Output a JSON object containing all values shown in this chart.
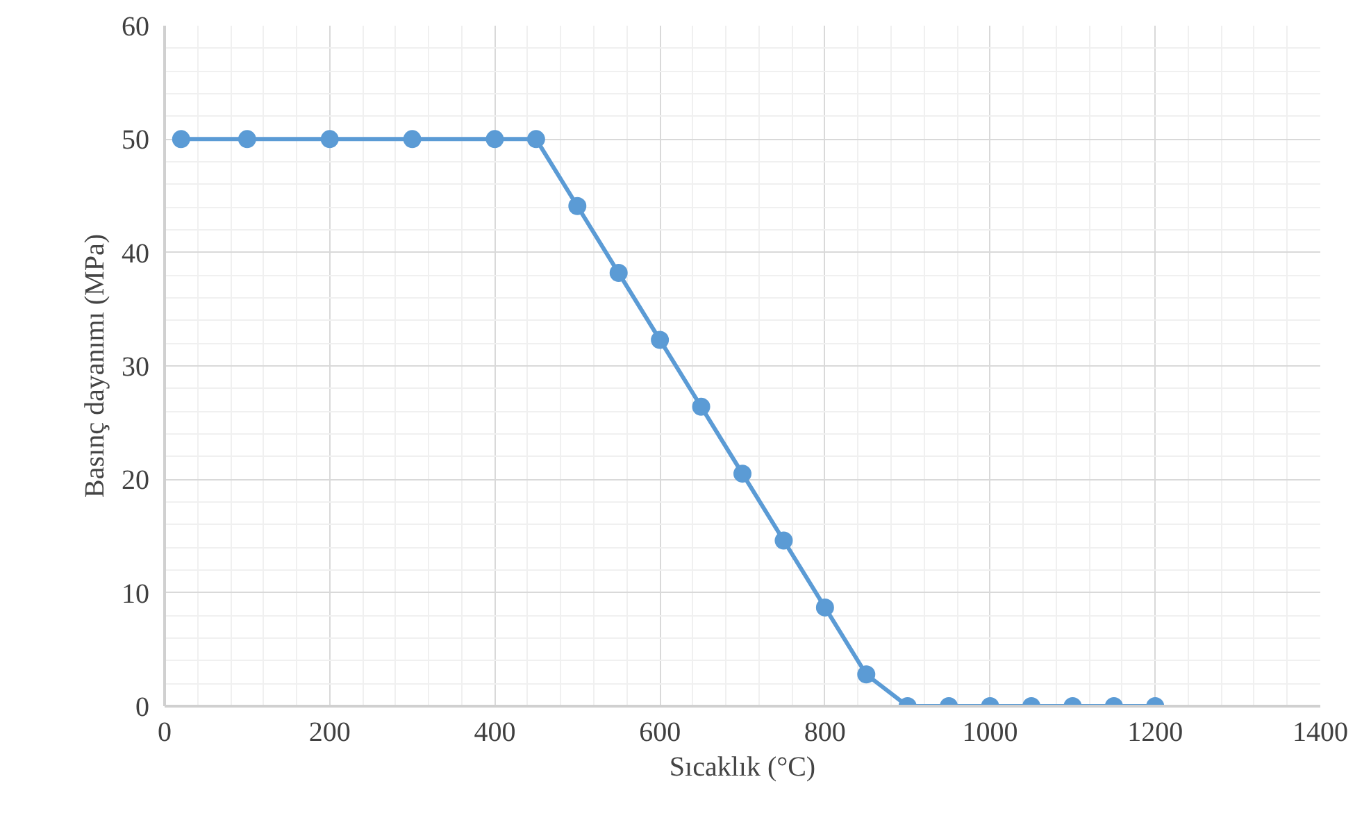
{
  "chart_data": {
    "type": "line",
    "xlabel": "Sıcaklık (°C)",
    "ylabel": "Basınç dayanımı (MPa)",
    "x": [
      20,
      100,
      200,
      300,
      400,
      450,
      500,
      550,
      600,
      650,
      700,
      750,
      800,
      850,
      900,
      950,
      1000,
      1050,
      1100,
      1150,
      1200
    ],
    "series": [
      {
        "color": "#5b9bd5",
        "values": [
          50,
          50,
          50,
          50,
          50,
          50,
          44.1,
          38.2,
          32.3,
          26.4,
          20.5,
          14.6,
          8.7,
          2.8,
          0,
          0,
          0,
          0,
          0,
          0,
          0
        ]
      }
    ],
    "xlim": [
      0,
      1400
    ],
    "xticks": [
      0,
      200,
      400,
      600,
      800,
      1000,
      1200,
      1400
    ],
    "ylim": [
      0,
      60
    ],
    "yticks": [
      0,
      10,
      20,
      30,
      40,
      50,
      60
    ],
    "grid": true,
    "marker": "circle",
    "line_style": "solid"
  }
}
